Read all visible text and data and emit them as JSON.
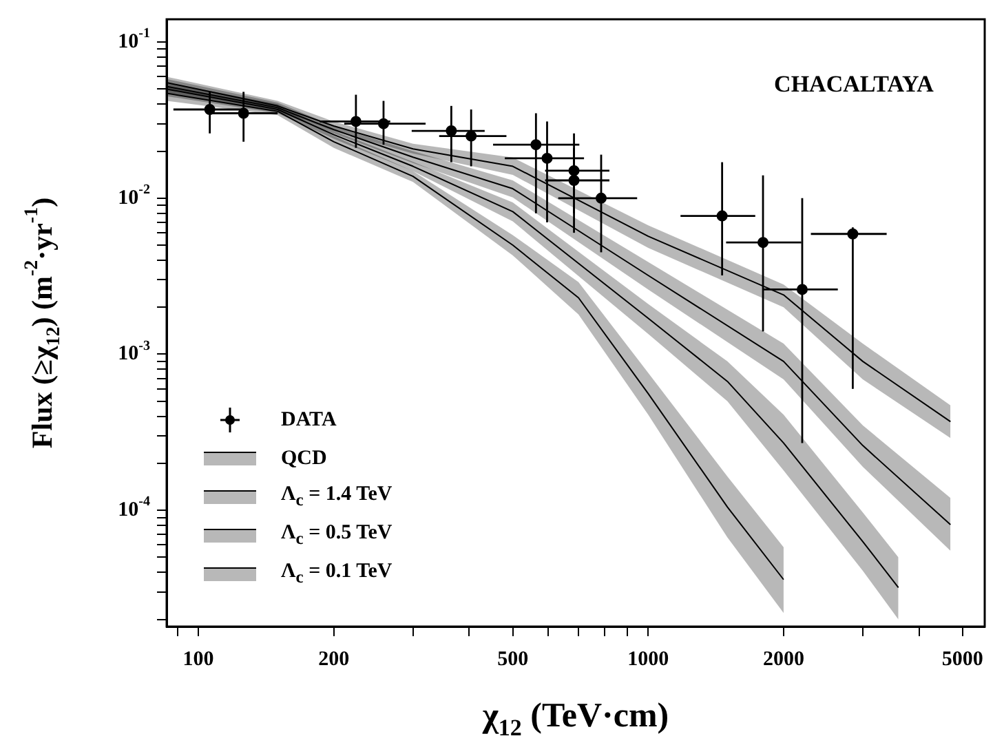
{
  "chart_data": {
    "type": "scatter",
    "xlabel": "χ$_{12}$ (TeV·cm)",
    "ylabel": "Flux (≥χ$_{12}$) (m$^{-2}$·yr$^{-1}$)",
    "annotations": [
      "CHACALTAYA"
    ],
    "log": "xy",
    "legend": "bottom left",
    "xlim": [
      85,
      5600
    ],
    "ylim": [
      1.8e-05,
      0.14
    ],
    "xticks": [
      {
        "value": 90,
        "label": null
      },
      100,
      200,
      {
        "value": 300,
        "label": null
      },
      {
        "value": 400,
        "label": null
      },
      500,
      {
        "value": 600,
        "label": null
      },
      {
        "value": 700,
        "label": null
      },
      {
        "value": 800,
        "label": null
      },
      {
        "value": 900,
        "label": null
      },
      1000,
      2000,
      {
        "value": 3000,
        "label": null
      },
      {
        "value": 4000,
        "label": null
      },
      5000
    ],
    "yticks": [
      {
        "value": 2e-05,
        "label": null
      },
      {
        "value": 3e-05,
        "label": null
      },
      {
        "value": 4e-05,
        "label": null
      },
      {
        "value": 5e-05,
        "label": null
      },
      {
        "value": 6e-05,
        "label": null
      },
      {
        "value": 7e-05,
        "label": null
      },
      {
        "value": 8e-05,
        "label": null
      },
      {
        "value": 9e-05,
        "label": null
      },
      {
        "value": 0.0001,
        "label": "10$^{-4}$"
      },
      {
        "value": 0.0002,
        "label": null
      },
      {
        "value": 0.0003,
        "label": null
      },
      {
        "value": 0.0004,
        "label": null
      },
      {
        "value": 0.0005,
        "label": null
      },
      {
        "value": 0.0006,
        "label": null
      },
      {
        "value": 0.0007,
        "label": null
      },
      {
        "value": 0.0008,
        "label": null
      },
      {
        "value": 0.0009,
        "label": null
      },
      {
        "value": 0.001,
        "label": "10$^{-3}$"
      },
      {
        "value": 0.002,
        "label": null
      },
      {
        "value": 0.003,
        "label": null
      },
      {
        "value": 0.004,
        "label": null
      },
      {
        "value": 0.005,
        "label": null
      },
      {
        "value": 0.006,
        "label": null
      },
      {
        "value": 0.007,
        "label": null
      },
      {
        "value": 0.008,
        "label": null
      },
      {
        "value": 0.009,
        "label": null
      },
      {
        "value": 0.01,
        "label": "10$^{-2}$"
      },
      {
        "value": 0.02,
        "label": null
      },
      {
        "value": 0.03,
        "label": null
      },
      {
        "value": 0.04,
        "label": null
      },
      {
        "value": 0.05,
        "label": null
      },
      {
        "value": 0.06,
        "label": null
      },
      {
        "value": 0.07,
        "label": null
      },
      {
        "value": 0.08,
        "label": null
      },
      {
        "value": 0.09,
        "label": null
      },
      {
        "value": 0.1,
        "label": "10$^{-1}$"
      }
    ],
    "series": [
      {
        "name": "DATA",
        "type": "scatter",
        "marker": "circle",
        "color": "#000000",
        "x": [
          106,
          126,
          224,
          258,
          365,
          404,
          563,
          596,
          684,
          684,
          786,
          1460,
          1800,
          2200,
          2850
        ],
        "values": [
          0.037,
          0.035,
          0.031,
          0.03,
          0.027,
          0.025,
          0.022,
          0.018,
          0.015,
          0.013,
          0.01,
          0.0077,
          0.0052,
          0.0026,
          0.0059
        ],
        "errors": [
          [
            0.026,
            0.048
          ],
          [
            0.023,
            0.048
          ],
          [
            0.021,
            0.046
          ],
          [
            0.022,
            0.042
          ],
          [
            0.017,
            0.039
          ],
          [
            0.016,
            0.037
          ],
          [
            0.008,
            0.035
          ],
          [
            0.007,
            0.031
          ],
          [
            0.008,
            0.026
          ],
          [
            0.006,
            0.021
          ],
          [
            0.0045,
            0.019
          ],
          [
            0.0032,
            0.017
          ],
          [
            0.0014,
            0.014
          ],
          [
            0.00027,
            0.01
          ],
          [
            0.0006,
            0.0065
          ]
        ],
        "xerrors": [
          [
            88,
            125
          ],
          [
            105,
            150
          ],
          [
            186,
            267
          ],
          [
            211,
            320
          ],
          [
            298,
            433
          ],
          [
            343,
            484
          ],
          [
            452,
            703
          ],
          [
            480,
            720
          ],
          [
            590,
            820
          ],
          [
            590,
            820
          ],
          [
            631,
            945
          ],
          [
            1180,
            1730
          ],
          [
            1490,
            2190
          ],
          [
            1800,
            2640
          ],
          [
            2300,
            3390
          ]
        ]
      },
      {
        "name": "QCD",
        "type": "line",
        "marker": "none",
        "color": "#000000",
        "x": [
          85,
          150,
          200,
          300,
          500,
          700,
          1000,
          1500,
          2000
        ],
        "values": [
          0.047,
          0.036,
          0.023,
          0.0138,
          0.005,
          0.0023,
          0.00056,
          0.000105,
          3.6e-05
        ],
        "lower": [
          0.042,
          0.034,
          0.021,
          0.0127,
          0.0043,
          0.0018,
          0.00041,
          6.7e-05,
          2.2e-05
        ],
        "upper": [
          0.052,
          0.039,
          0.025,
          0.0149,
          0.0058,
          0.0029,
          0.00076,
          0.000165,
          5.8e-05
        ]
      },
      {
        "name": "Λ$_{c}$ = 1.4 TeV",
        "type": "line",
        "marker": "none",
        "color": "#000000",
        "x": [
          85,
          150,
          200,
          300,
          500,
          1000,
          1500,
          2000,
          3000,
          3600
        ],
        "values": [
          0.05,
          0.037,
          0.0255,
          0.016,
          0.0082,
          0.0017,
          0.00067,
          0.00027,
          6.3e-05,
          3.2e-05
        ],
        "lower": [
          0.045,
          0.035,
          0.024,
          0.0149,
          0.0071,
          0.00135,
          0.0005,
          0.00018,
          4.1e-05,
          2e-05
        ],
        "upper": [
          0.055,
          0.04,
          0.027,
          0.0171,
          0.0094,
          0.0021,
          0.0009,
          0.00041,
          9.7e-05,
          5e-05
        ]
      },
      {
        "name": "Λ$_{c}$ = 0.5 TeV",
        "type": "line",
        "marker": "none",
        "color": "#000000",
        "x": [
          85,
          150,
          200,
          300,
          500,
          1000,
          2000,
          3000,
          4700
        ],
        "values": [
          0.052,
          0.038,
          0.0275,
          0.0183,
          0.0115,
          0.0032,
          0.0009,
          0.00026,
          8.1e-05
        ],
        "lower": [
          0.047,
          0.036,
          0.026,
          0.0168,
          0.0101,
          0.0026,
          0.00069,
          0.00019,
          5.5e-05
        ],
        "upper": [
          0.058,
          0.041,
          0.029,
          0.02,
          0.013,
          0.0039,
          0.00117,
          0.00035,
          0.00012
        ]
      },
      {
        "name": "Λ$_{c}$ = 0.1 TeV",
        "type": "line",
        "marker": "none",
        "color": "#000000",
        "x": [
          85,
          150,
          200,
          300,
          500,
          1000,
          2000,
          3000,
          4700
        ],
        "values": [
          0.055,
          0.039,
          0.029,
          0.0207,
          0.016,
          0.0057,
          0.0024,
          0.0009,
          0.00037
        ],
        "lower": [
          0.05,
          0.037,
          0.027,
          0.0193,
          0.0141,
          0.0048,
          0.002,
          0.00069,
          0.00029
        ],
        "upper": [
          0.06,
          0.042,
          0.031,
          0.0223,
          0.0182,
          0.0067,
          0.0028,
          0.00117,
          0.00047
        ]
      }
    ]
  }
}
